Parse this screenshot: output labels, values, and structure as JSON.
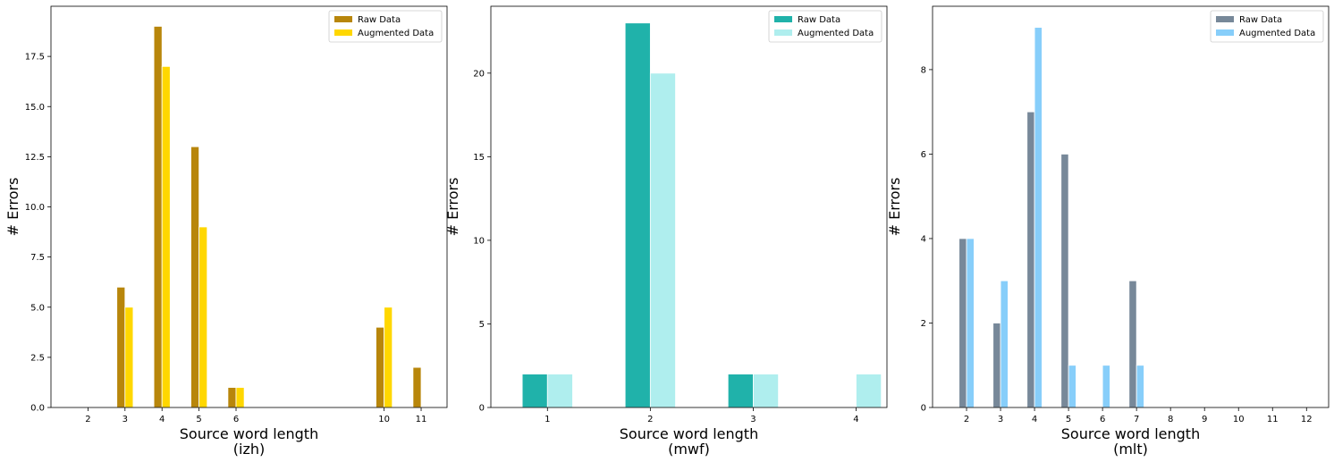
{
  "chart_data": [
    {
      "type": "bar",
      "xlabel": "Source word length\n(izh)",
      "ylabel": "# Errors",
      "ylim": [
        0,
        20
      ],
      "xlim": [
        1.0,
        11.7
      ],
      "xticks": [
        2,
        3,
        4,
        5,
        6,
        10,
        11
      ],
      "yticks": [
        0.0,
        2.5,
        5.0,
        7.5,
        10.0,
        12.5,
        15.0,
        17.5
      ],
      "ytick_labels": [
        "0.0",
        "2.5",
        "5.0",
        "7.5",
        "10.0",
        "12.5",
        "15.0",
        "17.5"
      ],
      "bar_width": 0.22,
      "legend_position": "top-right",
      "series": [
        {
          "name": "Raw Data",
          "color": "#b8860b",
          "x": [
            3,
            4,
            5,
            6,
            10,
            11
          ],
          "values": [
            6,
            19,
            13,
            1,
            4,
            2
          ]
        },
        {
          "name": "Augmented Data",
          "color": "#ffd700",
          "x": [
            3,
            4,
            5,
            6,
            10
          ],
          "values": [
            5,
            17,
            9,
            1,
            5
          ]
        }
      ]
    },
    {
      "type": "bar",
      "xlabel": "Source word length\n(mwf)",
      "ylabel": "# Errors",
      "ylim": [
        0,
        24
      ],
      "xlim": [
        0.45,
        4.3
      ],
      "xticks": [
        1,
        2,
        3,
        4
      ],
      "yticks": [
        0,
        5,
        10,
        15,
        20
      ],
      "ytick_labels": [
        "0",
        "5",
        "10",
        "15",
        "20"
      ],
      "bar_width": 0.245,
      "legend_position": "top-right",
      "series": [
        {
          "name": "Raw Data",
          "color": "#20b2aa",
          "x": [
            1,
            2,
            3
          ],
          "values": [
            2,
            23,
            2
          ]
        },
        {
          "name": "Augmented Data",
          "color": "#afeeee",
          "x": [
            1,
            2,
            3,
            4
          ],
          "values": [
            2,
            20,
            2,
            2
          ]
        }
      ]
    },
    {
      "type": "bar",
      "xlabel": "Source word length\n(mlt)",
      "ylabel": "# Errors",
      "ylim": [
        0,
        9.5
      ],
      "xlim": [
        1.0,
        12.65
      ],
      "xticks": [
        2,
        3,
        4,
        5,
        6,
        7,
        8,
        9,
        10,
        11,
        12
      ],
      "yticks": [
        0,
        2,
        4,
        6,
        8
      ],
      "ytick_labels": [
        "0",
        "2",
        "4",
        "6",
        "8"
      ],
      "bar_width": 0.22,
      "legend_position": "top-right",
      "series": [
        {
          "name": "Raw Data",
          "color": "#778899",
          "x": [
            2,
            3,
            4,
            5,
            7
          ],
          "values": [
            4,
            2,
            7,
            6,
            3
          ]
        },
        {
          "name": "Augmented Data",
          "color": "#87cefa",
          "x": [
            2,
            3,
            4,
            5,
            6,
            7
          ],
          "values": [
            4,
            3,
            9,
            1,
            1,
            1
          ]
        }
      ]
    }
  ]
}
